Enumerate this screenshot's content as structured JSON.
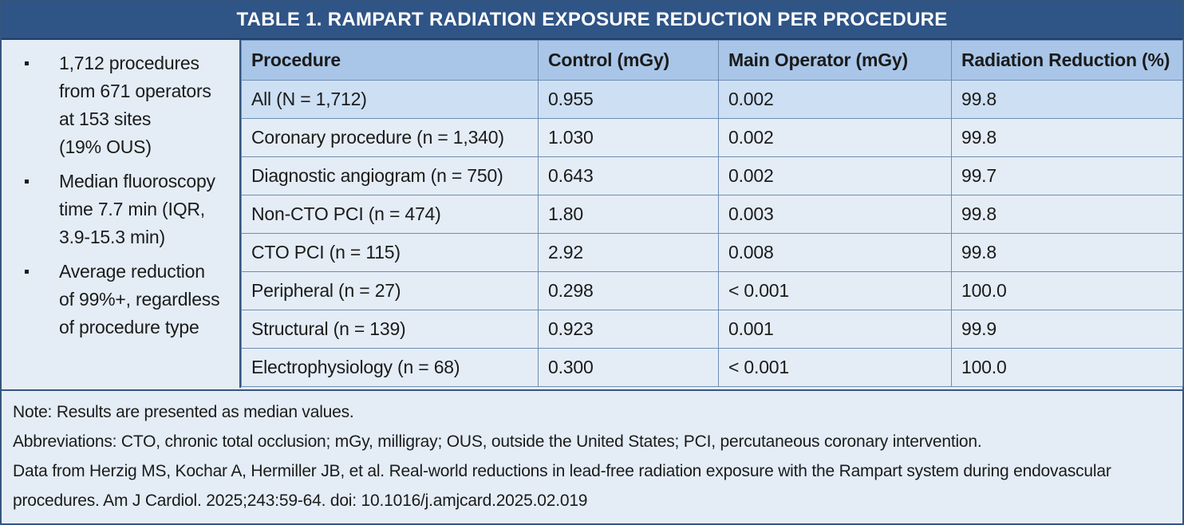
{
  "title": "TABLE 1.  RAMPART RADIATION EXPOSURE REDUCTION PER PROCEDURE",
  "bullets": [
    [
      "1,712 procedures",
      "from 671 operators",
      "at 153 sites",
      "(19% OUS)"
    ],
    [
      "Median fluoroscopy",
      "time 7.7 min (IQR,",
      "3.9-15.3 min)"
    ],
    [
      "Average reduction",
      "of 99%+, regardless",
      "of procedure type"
    ]
  ],
  "table": {
    "headers": [
      "Procedure",
      "Control (mGy)",
      "Main Operator (mGy)",
      "Radiation Reduction (%)"
    ],
    "rows": [
      [
        "All (N = 1,712)",
        "0.955",
        "0.002",
        "99.8"
      ],
      [
        "Coronary procedure (n = 1,340)",
        "1.030",
        "0.002",
        "99.8"
      ],
      [
        "Diagnostic angiogram (n = 750)",
        "0.643",
        "0.002",
        "99.7"
      ],
      [
        "Non-CTO PCI (n = 474)",
        "1.80",
        "0.003",
        "99.8"
      ],
      [
        "CTO PCI (n = 115)",
        "2.92",
        "0.008",
        "99.8"
      ],
      [
        "Peripheral (n = 27)",
        "0.298",
        "< 0.001",
        "100.0"
      ],
      [
        "Structural (n = 139)",
        "0.923",
        "0.001",
        "99.9"
      ],
      [
        "Electrophysiology (n = 68)",
        "0.300",
        "< 0.001",
        "100.0"
      ]
    ]
  },
  "notes": {
    "note": "Note: Results are presented as median values.",
    "abbreviations": "Abbreviations: CTO, chronic total occlusion; mGy, milligray; OUS, outside the United States; PCI, percutaneous coronary intervention.",
    "citation_line1": "Data from Herzig MS, Kochar A, Hermiller JB, et al. Real-world reductions in lead-free radiation exposure with the Rampart system during endovascular",
    "citation_line2": "procedures. Am J Cardiol. 2025;243:59-64. doi: 10.1016/j.amjcard.2025.02.019"
  },
  "colors": {
    "title_bar": "#2f5486",
    "header_row": "#a9c6e8",
    "highlight_row": "#cddff3",
    "body_background": "#e4edf6"
  }
}
